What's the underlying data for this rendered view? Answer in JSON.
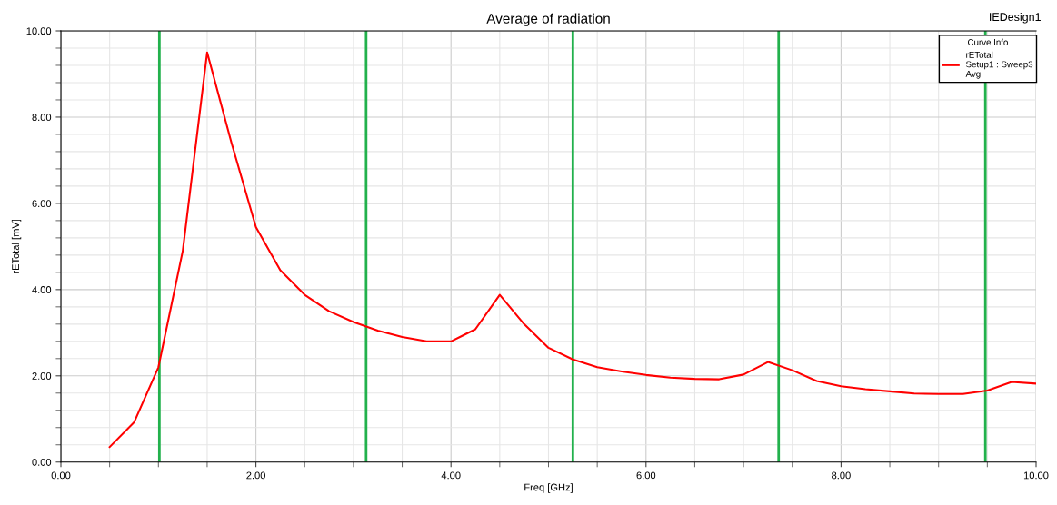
{
  "chart_data": {
    "type": "line",
    "title": "Average of radiation",
    "xlabel": "Freq [GHz]",
    "ylabel": "rETotal [mV]",
    "legend_title": "Curve Info",
    "annotations": [
      "IEDesign1"
    ],
    "x": [
      0.5,
      0.75,
      1.0,
      1.25,
      1.5,
      1.75,
      2.0,
      2.25,
      2.5,
      2.75,
      3.0,
      3.25,
      3.5,
      3.75,
      4.0,
      4.25,
      4.5,
      4.75,
      5.0,
      5.25,
      5.5,
      5.75,
      6.0,
      6.25,
      6.5,
      6.75,
      7.0,
      7.25,
      7.5,
      7.75,
      8.0,
      8.25,
      8.5,
      8.75,
      9.0,
      9.25,
      9.5,
      9.75,
      10.0
    ],
    "series": [
      {
        "name": "rETotal\nSetup1 : Sweep3\nAvg",
        "color": "#ff0000",
        "values": [
          0.35,
          0.92,
          2.2,
          4.9,
          9.5,
          7.4,
          5.45,
          4.45,
          3.88,
          3.5,
          3.25,
          3.05,
          2.9,
          2.8,
          2.8,
          3.08,
          3.88,
          3.2,
          2.65,
          2.38,
          2.2,
          2.1,
          2.02,
          1.96,
          1.93,
          1.92,
          2.03,
          2.32,
          2.13,
          1.88,
          1.76,
          1.69,
          1.64,
          1.59,
          1.58,
          1.58,
          1.66,
          1.86,
          1.82
        ]
      }
    ],
    "xlim": [
      0,
      10
    ],
    "ylim": [
      0,
      10
    ],
    "xticks": [
      {
        "value": 0,
        "label": "0.00"
      },
      {
        "value": 2,
        "label": "2.00"
      },
      {
        "value": 4,
        "label": "4.00"
      },
      {
        "value": 6,
        "label": "6.00"
      },
      {
        "value": 8,
        "label": "8.00"
      },
      {
        "value": 10,
        "label": "10.00"
      }
    ],
    "yticks": [
      {
        "value": 0,
        "label": "0.00"
      },
      {
        "value": 2,
        "label": "2.00"
      },
      {
        "value": 4,
        "label": "4.00"
      },
      {
        "value": 6,
        "label": "6.00"
      },
      {
        "value": 8,
        "label": "8.00"
      },
      {
        "value": 10,
        "label": "10.00"
      }
    ],
    "ref_lines": [
      {
        "axis": "x",
        "value": 1.01,
        "color": "#22b14c"
      },
      {
        "axis": "x",
        "value": 3.13,
        "color": "#22b14c"
      },
      {
        "axis": "x",
        "value": 5.25,
        "color": "#22b14c"
      },
      {
        "axis": "x",
        "value": 7.36,
        "color": "#22b14c"
      },
      {
        "axis": "x",
        "value": 9.48,
        "color": "#22b14c"
      }
    ],
    "grid": true,
    "legend": "top right",
    "marker": "none",
    "line_style": "solid"
  }
}
